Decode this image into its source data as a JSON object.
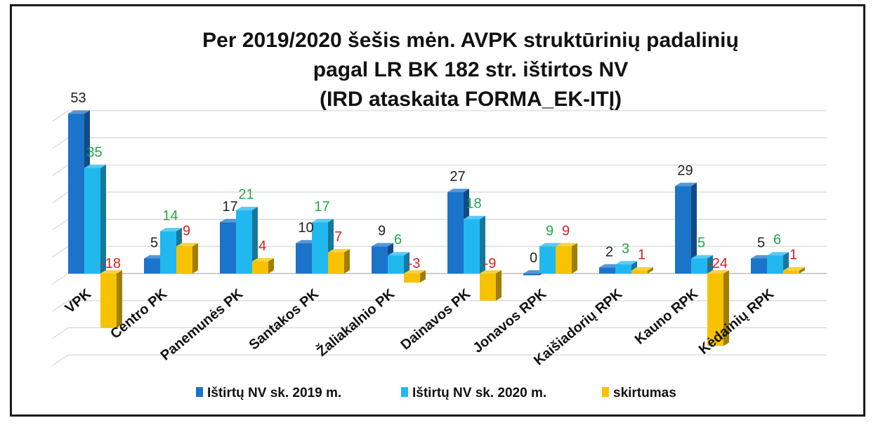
{
  "chart_data": {
    "type": "bar",
    "title": [
      "Per 2019/2020 šešis mėn. AVPK struktūrinių padalinių",
      "pagal LR BK 182 str. ištirtos NV",
      "(IRD ataskaita FORMA_EK-ITĮ)"
    ],
    "categories": [
      "VPK",
      "Centro PK",
      "Panemunės PK",
      "Santakos PK",
      "Žaliakalnio PK",
      "Dainavos PK",
      "Jonavos RPK",
      "Kaišiadorių RPK",
      "Kauno RPK",
      "Kėdainių RPK"
    ],
    "series": [
      {
        "name": "Ištirtų NV sk. 2019 m.",
        "values": [
          53,
          5,
          17,
          10,
          9,
          27,
          0,
          2,
          29,
          5
        ],
        "color": "#1b74c9",
        "label_color": "#222222"
      },
      {
        "name": "Ištirtų NV sk. 2020 m.",
        "values": [
          35,
          14,
          21,
          17,
          6,
          18,
          9,
          3,
          5,
          6
        ],
        "color": "#21b8f0",
        "label_color": "#20a84a"
      },
      {
        "name": "skirtumas",
        "values": [
          -18,
          9,
          4,
          7,
          -3,
          -9,
          9,
          1,
          -24,
          1
        ],
        "color": "#f7c200",
        "label_color": "#d61f26"
      }
    ],
    "ylim": [
      -30,
      60
    ],
    "grid": true,
    "legend": "bottom",
    "xlabel": "",
    "ylabel": ""
  }
}
